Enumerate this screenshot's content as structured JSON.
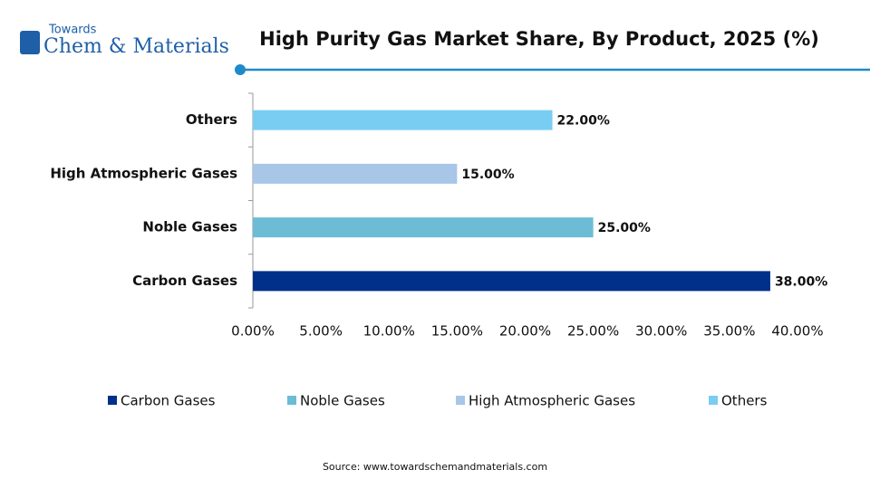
{
  "logo": {
    "top": "Towards",
    "main": "Chem & Materials"
  },
  "chart_data": {
    "type": "bar",
    "orientation": "horizontal",
    "title": "High Purity Gas Market Share, By Product, 2025 (%)",
    "categories": [
      "Carbon Gases",
      "Noble Gases",
      "High Atmospheric Gases",
      "Others"
    ],
    "values": [
      38,
      25,
      15,
      22
    ],
    "value_labels": [
      "38.00%",
      "25.00%",
      "15.00%",
      "22.00%"
    ],
    "colors": [
      "#00308a",
      "#6cbcd6",
      "#a7c6e8",
      "#79cdf3"
    ],
    "xlim": [
      0,
      40
    ],
    "xticks": [
      {
        "value": 0,
        "label": "0.00%"
      },
      {
        "value": 5,
        "label": "5.00%"
      },
      {
        "value": 10,
        "label": "10.00%"
      },
      {
        "value": 15,
        "label": "15.00%"
      },
      {
        "value": 20,
        "label": "20.00%"
      },
      {
        "value": 25,
        "label": "25.00%"
      },
      {
        "value": 30,
        "label": "30.00%"
      },
      {
        "value": 35,
        "label": "35.00%"
      },
      {
        "value": 40,
        "label": "40.00%"
      }
    ],
    "legend": "bottom",
    "source": "Source: www.towardschemandmaterials.com"
  }
}
